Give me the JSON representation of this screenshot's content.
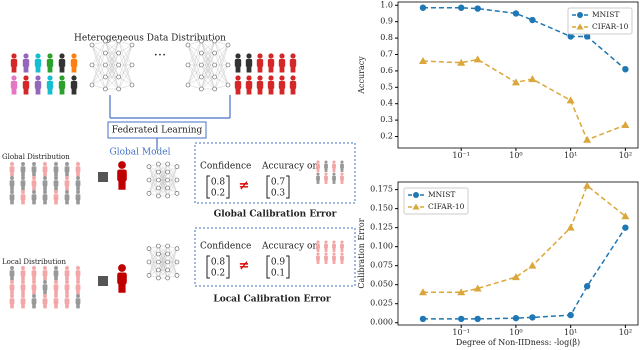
{
  "diagram": {
    "title": "Heterogeneous Data Distribution",
    "ellipsis": "...",
    "federated": "Federated Learning",
    "model": "Global Model",
    "global": {
      "label": "Global Distribution",
      "confidence": "Confidence",
      "accuracy": "Accuracy on",
      "conf_vec": [
        0.8,
        0.2
      ],
      "relation": "≠",
      "acc_vec": [
        0.7,
        0.3
      ],
      "caption": "Global Calibration Error"
    },
    "local": {
      "label": "Local Distribution",
      "confidence": "Confidence",
      "accuracy": "Accuracy on",
      "conf_vec": [
        0.8,
        0.2
      ],
      "relation": "≠",
      "acc_vec": [
        0.9,
        0.1
      ],
      "caption": "Local Calibration Error"
    }
  },
  "chart_data": [
    {
      "type": "line",
      "ylabel": "Accuracy",
      "x_scale": "log",
      "line_style": "dashed",
      "legend": "upper right",
      "x": [
        0.02,
        0.1,
        0.2,
        1,
        2,
        10,
        20,
        100
      ],
      "xlim": [
        0.007,
        170
      ],
      "xticks": [
        {
          "value": 0.1,
          "label": "10⁻¹"
        },
        {
          "value": 1,
          "label": "10⁰"
        },
        {
          "value": 10,
          "label": "10¹"
        },
        {
          "value": 100,
          "label": "10²"
        }
      ],
      "ylim": [
        0.13,
        1.02
      ],
      "yticks": [
        0.2,
        0.3,
        0.4,
        0.5,
        0.6,
        0.7,
        0.8,
        0.9,
        {
          "value": 1.0,
          "label": "1.0"
        }
      ],
      "series": [
        {
          "name": "MNIST",
          "color": "#1f77b4",
          "marker": "circle",
          "values": [
            0.985,
            0.985,
            0.98,
            0.95,
            0.91,
            0.81,
            0.81,
            0.61
          ]
        },
        {
          "name": "CIFAR-10",
          "color": "#dba73a",
          "marker": "triangle",
          "values": [
            0.66,
            0.65,
            0.67,
            0.53,
            0.55,
            0.42,
            0.18,
            0.27
          ]
        }
      ]
    },
    {
      "type": "line",
      "xlabel": "Degree of Non-IIDness: -log(β)",
      "ylabel": "Calibration Error",
      "x_scale": "log",
      "line_style": "dashed",
      "legend": "upper left",
      "x": [
        0.02,
        0.1,
        0.2,
        1,
        2,
        10,
        20,
        100
      ],
      "xlim": [
        0.007,
        170
      ],
      "xticks": [
        {
          "value": 0.1,
          "label": "10⁻¹"
        },
        {
          "value": 1,
          "label": "10⁰"
        },
        {
          "value": 10,
          "label": "10¹"
        },
        {
          "value": 100,
          "label": "10²"
        }
      ],
      "ylim": [
        -0.003,
        0.185
      ],
      "yticks": [
        {
          "value": 0,
          "label": "0.000"
        },
        {
          "value": 0.025,
          "label": "0.025"
        },
        {
          "value": 0.05,
          "label": "0.050"
        },
        {
          "value": 0.075,
          "label": "0.075"
        },
        {
          "value": 0.1,
          "label": "0.100"
        },
        {
          "value": 0.125,
          "label": "0.125"
        },
        {
          "value": 0.15,
          "label": "0.150"
        },
        {
          "value": 0.175,
          "label": "0.175"
        }
      ],
      "series": [
        {
          "name": "MNIST",
          "color": "#1f77b4",
          "marker": "circle",
          "values": [
            0.005,
            0.005,
            0.005,
            0.006,
            0.007,
            0.01,
            0.048,
            0.125
          ]
        },
        {
          "name": "CIFAR-10",
          "color": "#dba73a",
          "marker": "triangle",
          "values": [
            0.04,
            0.04,
            0.045,
            0.06,
            0.075,
            0.125,
            0.18,
            0.14
          ]
        }
      ]
    }
  ]
}
